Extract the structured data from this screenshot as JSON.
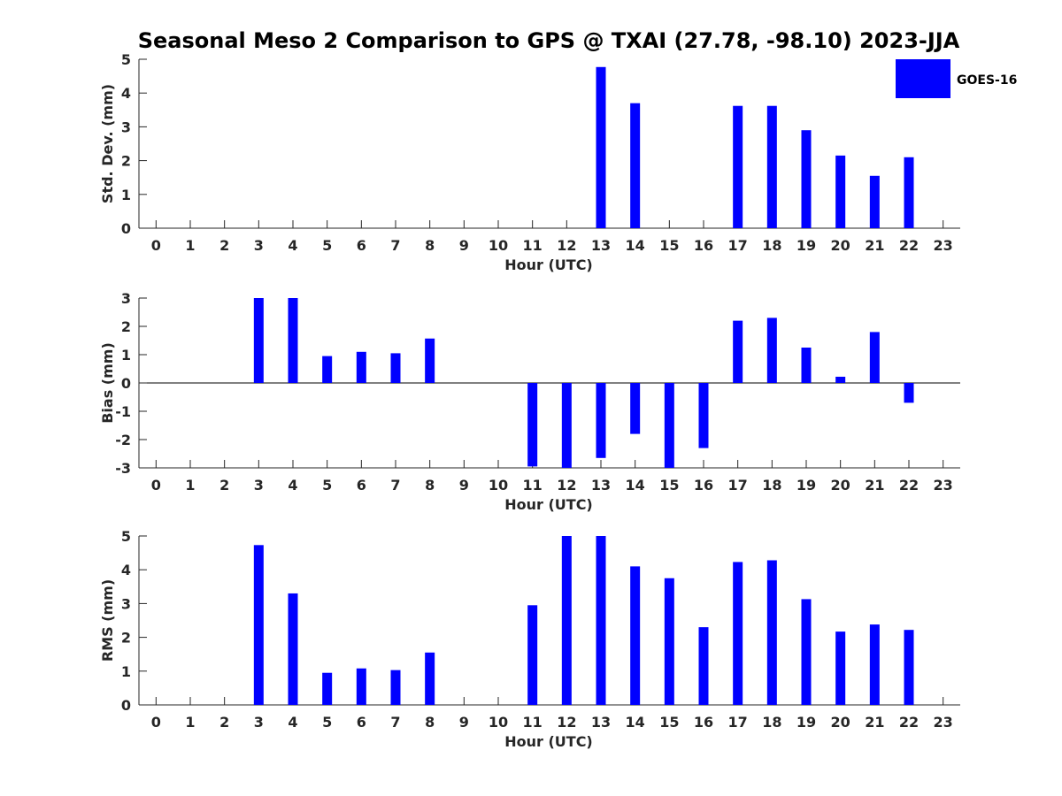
{
  "colors": {
    "bar": "#0000ff",
    "axis": "#262626"
  },
  "chart_data": {
    "title": "Seasonal Meso 2 Comparison to GPS @ TXAI (27.78, -98.10) 2023-JJA",
    "legend": {
      "label": "GOES-16",
      "placement": "top-right"
    },
    "x": [
      0,
      1,
      2,
      3,
      4,
      5,
      6,
      7,
      8,
      9,
      10,
      11,
      12,
      13,
      14,
      15,
      16,
      17,
      18,
      19,
      20,
      21,
      22,
      23
    ],
    "xlabel": "Hour (UTC)",
    "panels": [
      {
        "type": "bar",
        "ylabel": "Std. Dev. (mm)",
        "ylim": [
          0,
          5
        ],
        "yticks": [
          0,
          1,
          2,
          3,
          4,
          5
        ],
        "series": [
          {
            "name": "GOES-16",
            "values": [
              null,
              null,
              null,
              null,
              null,
              null,
              null,
              null,
              null,
              null,
              null,
              null,
              null,
              4.77,
              3.7,
              null,
              null,
              3.62,
              3.62,
              2.9,
              2.15,
              1.55,
              2.1,
              null
            ]
          }
        ]
      },
      {
        "type": "bar",
        "ylabel": "Bias (mm)",
        "ylim": [
          -3,
          3
        ],
        "yticks": [
          -3,
          -2,
          -1,
          0,
          1,
          2,
          3
        ],
        "zero_line": true,
        "series": [
          {
            "name": "GOES-16",
            "values": [
              null,
              null,
              null,
              3.0,
              3.0,
              0.95,
              1.1,
              1.05,
              1.57,
              null,
              null,
              -2.95,
              -3.0,
              -2.65,
              -1.8,
              -3.0,
              -2.3,
              2.2,
              2.3,
              1.25,
              0.22,
              1.8,
              -0.7,
              null
            ]
          }
        ]
      },
      {
        "type": "bar",
        "ylabel": "RMS (mm)",
        "ylim": [
          0,
          5
        ],
        "yticks": [
          0,
          1,
          2,
          3,
          4,
          5
        ],
        "series": [
          {
            "name": "GOES-16",
            "values": [
              null,
              null,
              null,
              4.73,
              3.3,
              0.95,
              1.08,
              1.03,
              1.55,
              null,
              null,
              2.95,
              5.0,
              5.0,
              4.1,
              3.75,
              2.3,
              4.23,
              4.28,
              3.13,
              2.17,
              2.38,
              2.22,
              null
            ]
          }
        ]
      }
    ]
  }
}
